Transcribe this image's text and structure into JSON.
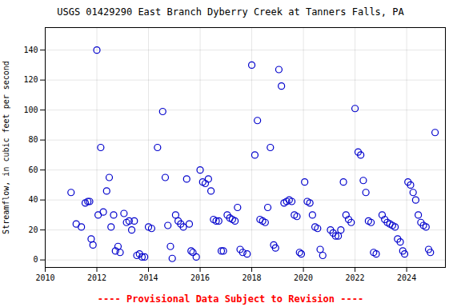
{
  "chart_data": {
    "type": "scatter",
    "title": "USGS 01429290 East Branch Dyberry Creek at Tanners Falls, PA",
    "ylabel": "Streamflow, in cubic feet per second",
    "annotations": [
      {
        "text": "---- Provisional Data Subject to Revision ----",
        "color": "#FF0000"
      }
    ],
    "xlim": [
      2010,
      2025.5
    ],
    "ylim": [
      -5,
      155
    ],
    "xticks": [
      2010,
      2012,
      2014,
      2016,
      2018,
      2020,
      2022,
      2024
    ],
    "yticks": [
      0,
      20,
      40,
      60,
      80,
      100,
      120,
      140
    ],
    "grid": true,
    "color": "#0000CC",
    "marker": "o",
    "x": [
      2011.0,
      2011.2,
      2011.4,
      2011.55,
      2011.65,
      2011.72,
      2011.78,
      2011.85,
      2012.0,
      2012.05,
      2012.15,
      2012.25,
      2012.38,
      2012.48,
      2012.55,
      2012.65,
      2012.72,
      2012.82,
      2012.9,
      2013.05,
      2013.15,
      2013.25,
      2013.35,
      2013.45,
      2013.55,
      2013.65,
      2013.75,
      2013.85,
      2014.0,
      2014.12,
      2014.35,
      2014.55,
      2014.65,
      2014.75,
      2014.85,
      2014.92,
      2015.05,
      2015.15,
      2015.25,
      2015.35,
      2015.48,
      2015.58,
      2015.65,
      2015.72,
      2015.85,
      2016.0,
      2016.1,
      2016.2,
      2016.32,
      2016.42,
      2016.52,
      2016.62,
      2016.72,
      2016.82,
      2016.9,
      2017.05,
      2017.15,
      2017.25,
      2017.35,
      2017.45,
      2017.55,
      2017.65,
      2017.82,
      2018.0,
      2018.12,
      2018.22,
      2018.32,
      2018.42,
      2018.52,
      2018.62,
      2018.72,
      2018.85,
      2018.92,
      2019.05,
      2019.15,
      2019.25,
      2019.35,
      2019.45,
      2019.55,
      2019.65,
      2019.75,
      2019.85,
      2019.92,
      2020.05,
      2020.15,
      2020.25,
      2020.35,
      2020.45,
      2020.55,
      2020.65,
      2020.75,
      2021.05,
      2021.15,
      2021.25,
      2021.35,
      2021.45,
      2021.55,
      2021.65,
      2021.75,
      2021.85,
      2022.0,
      2022.12,
      2022.22,
      2022.32,
      2022.42,
      2022.52,
      2022.62,
      2022.72,
      2022.82,
      2023.05,
      2023.15,
      2023.25,
      2023.35,
      2023.45,
      2023.55,
      2023.65,
      2023.75,
      2023.85,
      2023.92,
      2024.05,
      2024.15,
      2024.25,
      2024.35,
      2024.45,
      2024.55,
      2024.65,
      2024.75,
      2024.85,
      2024.92,
      2025.1
    ],
    "values": [
      45,
      24,
      22,
      38,
      39,
      39,
      14,
      10,
      140,
      30,
      75,
      32,
      46,
      55,
      22,
      30,
      6,
      9,
      5,
      31,
      25,
      26,
      20,
      26,
      3,
      4,
      2,
      2,
      22,
      21,
      75,
      99,
      55,
      23,
      9,
      1,
      30,
      26,
      24,
      22,
      54,
      24,
      6,
      5,
      2,
      60,
      52,
      51,
      54,
      46,
      27,
      26,
      26,
      6,
      6,
      30,
      28,
      27,
      26,
      35,
      7,
      5,
      4,
      130,
      70,
      93,
      27,
      26,
      25,
      35,
      75,
      10,
      8,
      127,
      116,
      38,
      39,
      40,
      39,
      30,
      29,
      5,
      4,
      52,
      39,
      38,
      30,
      22,
      21,
      7,
      3,
      20,
      18,
      16,
      16,
      20,
      52,
      30,
      27,
      25,
      101,
      72,
      70,
      53,
      45,
      26,
      25,
      5,
      4,
      30,
      27,
      25,
      24,
      23,
      22,
      14,
      12,
      6,
      4,
      52,
      50,
      45,
      40,
      30,
      25,
      23,
      22,
      7,
      5,
      85
    ]
  }
}
